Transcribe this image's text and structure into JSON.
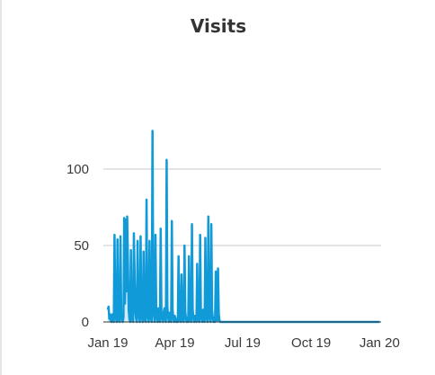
{
  "chart_data": {
    "type": "line",
    "title": "Visits",
    "xlabel": "",
    "ylabel": "",
    "x_tick_labels": [
      "Jan 19",
      "Apr 19",
      "Jul 19",
      "Oct 19",
      "Jan 20"
    ],
    "x_ticks": [
      "2019-01-01",
      "2019-04-01",
      "2019-07-01",
      "2019-10-01",
      "2020-01-01"
    ],
    "y_ticks": [
      0,
      50,
      100
    ],
    "y_tick_labels": [
      "0",
      "50",
      "100"
    ],
    "ylim": [
      0,
      140
    ],
    "xlim": [
      "2018-12-26",
      "2020-01-03"
    ],
    "grid": true,
    "series_color": "#109ad8",
    "fill_color": "#c7e6f4",
    "series": [
      {
        "values": [
          [
            "2019-01-01",
            8
          ],
          [
            "2019-01-02",
            10
          ],
          [
            "2019-01-03",
            2
          ],
          [
            "2019-01-04",
            5
          ],
          [
            "2019-01-05",
            1
          ],
          [
            "2019-01-06",
            0
          ],
          [
            "2019-01-07",
            5
          ],
          [
            "2019-01-08",
            1
          ],
          [
            "2019-01-09",
            0
          ],
          [
            "2019-01-10",
            57
          ],
          [
            "2019-01-11",
            8
          ],
          [
            "2019-01-12",
            2
          ],
          [
            "2019-01-13",
            0
          ],
          [
            "2019-01-14",
            54
          ],
          [
            "2019-01-15",
            5
          ],
          [
            "2019-01-16",
            1
          ],
          [
            "2019-01-17",
            0
          ],
          [
            "2019-01-18",
            56
          ],
          [
            "2019-01-19",
            6
          ],
          [
            "2019-01-20",
            2
          ],
          [
            "2019-01-21",
            0
          ],
          [
            "2019-01-22",
            3
          ],
          [
            "2019-01-23",
            68
          ],
          [
            "2019-01-24",
            12
          ],
          [
            "2019-01-25",
            67
          ],
          [
            "2019-01-26",
            20
          ],
          [
            "2019-01-27",
            69
          ],
          [
            "2019-01-28",
            40
          ],
          [
            "2019-01-29",
            8
          ],
          [
            "2019-01-30",
            2
          ],
          [
            "2019-01-31",
            0
          ],
          [
            "2019-02-01",
            47
          ],
          [
            "2019-02-02",
            6
          ],
          [
            "2019-02-03",
            1
          ],
          [
            "2019-02-04",
            0
          ],
          [
            "2019-02-05",
            58
          ],
          [
            "2019-02-06",
            30
          ],
          [
            "2019-02-07",
            7
          ],
          [
            "2019-02-08",
            2
          ],
          [
            "2019-02-09",
            0
          ],
          [
            "2019-02-10",
            53
          ],
          [
            "2019-02-11",
            8
          ],
          [
            "2019-02-12",
            3
          ],
          [
            "2019-02-13",
            0
          ],
          [
            "2019-02-14",
            56
          ],
          [
            "2019-02-15",
            7
          ],
          [
            "2019-02-16",
            2
          ],
          [
            "2019-02-17",
            0
          ],
          [
            "2019-02-18",
            46
          ],
          [
            "2019-02-19",
            6
          ],
          [
            "2019-02-20",
            1
          ],
          [
            "2019-02-21",
            0
          ],
          [
            "2019-02-22",
            80
          ],
          [
            "2019-02-23",
            10
          ],
          [
            "2019-02-24",
            3
          ],
          [
            "2019-02-25",
            0
          ],
          [
            "2019-02-26",
            53
          ],
          [
            "2019-02-27",
            8
          ],
          [
            "2019-02-28",
            2
          ],
          [
            "2019-03-01",
            0
          ],
          [
            "2019-03-02",
            125
          ],
          [
            "2019-03-03",
            20
          ],
          [
            "2019-03-04",
            5
          ],
          [
            "2019-03-05",
            0
          ],
          [
            "2019-03-06",
            57
          ],
          [
            "2019-03-07",
            8
          ],
          [
            "2019-03-08",
            2
          ],
          [
            "2019-03-09",
            0
          ],
          [
            "2019-03-10",
            9
          ],
          [
            "2019-03-11",
            2
          ],
          [
            "2019-03-12",
            0
          ],
          [
            "2019-03-13",
            61
          ],
          [
            "2019-03-14",
            7
          ],
          [
            "2019-03-15",
            2
          ],
          [
            "2019-03-16",
            0
          ],
          [
            "2019-03-17",
            6
          ],
          [
            "2019-03-18",
            9
          ],
          [
            "2019-03-19",
            2
          ],
          [
            "2019-03-20",
            0
          ],
          [
            "2019-03-21",
            106
          ],
          [
            "2019-03-22",
            10
          ],
          [
            "2019-03-23",
            3
          ],
          [
            "2019-03-24",
            0
          ],
          [
            "2019-03-25",
            6
          ],
          [
            "2019-03-26",
            2
          ],
          [
            "2019-03-27",
            0
          ],
          [
            "2019-03-28",
            66
          ],
          [
            "2019-03-29",
            8
          ],
          [
            "2019-03-30",
            2
          ],
          [
            "2019-03-31",
            0
          ],
          [
            "2019-04-01",
            4
          ],
          [
            "2019-04-02",
            1
          ],
          [
            "2019-04-03",
            0
          ],
          [
            "2019-04-04",
            2
          ],
          [
            "2019-04-05",
            0
          ],
          [
            "2019-04-06",
            43
          ],
          [
            "2019-04-07",
            6
          ],
          [
            "2019-04-08",
            1
          ],
          [
            "2019-04-09",
            0
          ],
          [
            "2019-04-10",
            31
          ],
          [
            "2019-04-11",
            5
          ],
          [
            "2019-04-12",
            1
          ],
          [
            "2019-04-13",
            0
          ],
          [
            "2019-04-14",
            50
          ],
          [
            "2019-04-15",
            7
          ],
          [
            "2019-04-16",
            2
          ],
          [
            "2019-04-17",
            0
          ],
          [
            "2019-04-18",
            3
          ],
          [
            "2019-04-19",
            0
          ],
          [
            "2019-04-20",
            43
          ],
          [
            "2019-04-21",
            6
          ],
          [
            "2019-04-22",
            1
          ],
          [
            "2019-04-23",
            0
          ],
          [
            "2019-04-24",
            64
          ],
          [
            "2019-04-25",
            8
          ],
          [
            "2019-04-26",
            2
          ],
          [
            "2019-04-27",
            0
          ],
          [
            "2019-04-28",
            4
          ],
          [
            "2019-04-29",
            1
          ],
          [
            "2019-04-30",
            0
          ],
          [
            "2019-05-01",
            38
          ],
          [
            "2019-05-02",
            5
          ],
          [
            "2019-05-03",
            1
          ],
          [
            "2019-05-04",
            0
          ],
          [
            "2019-05-05",
            57
          ],
          [
            "2019-05-06",
            8
          ],
          [
            "2019-05-07",
            2
          ],
          [
            "2019-05-08",
            0
          ],
          [
            "2019-05-09",
            8
          ],
          [
            "2019-05-10",
            2
          ],
          [
            "2019-05-11",
            0
          ],
          [
            "2019-05-12",
            55
          ],
          [
            "2019-05-13",
            7
          ],
          [
            "2019-05-14",
            2
          ],
          [
            "2019-05-15",
            0
          ],
          [
            "2019-05-16",
            69
          ],
          [
            "2019-05-17",
            9
          ],
          [
            "2019-05-18",
            2
          ],
          [
            "2019-05-19",
            0
          ],
          [
            "2019-05-20",
            64
          ],
          [
            "2019-05-21",
            8
          ],
          [
            "2019-05-22",
            2
          ],
          [
            "2019-05-23",
            0
          ],
          [
            "2019-05-24",
            3
          ],
          [
            "2019-05-25",
            0
          ],
          [
            "2019-05-26",
            33
          ],
          [
            "2019-05-27",
            4
          ],
          [
            "2019-05-28",
            1
          ],
          [
            "2019-05-29",
            35
          ],
          [
            "2019-05-30",
            5
          ],
          [
            "2019-05-31",
            1
          ],
          [
            "2019-06-01",
            0
          ],
          [
            "2019-06-05",
            0
          ],
          [
            "2019-06-15",
            0
          ],
          [
            "2019-07-01",
            0
          ],
          [
            "2019-08-01",
            0
          ],
          [
            "2019-09-01",
            0
          ],
          [
            "2019-10-01",
            0
          ],
          [
            "2019-11-01",
            0
          ],
          [
            "2019-12-01",
            0
          ],
          [
            "2020-01-01",
            0
          ]
        ]
      }
    ]
  }
}
